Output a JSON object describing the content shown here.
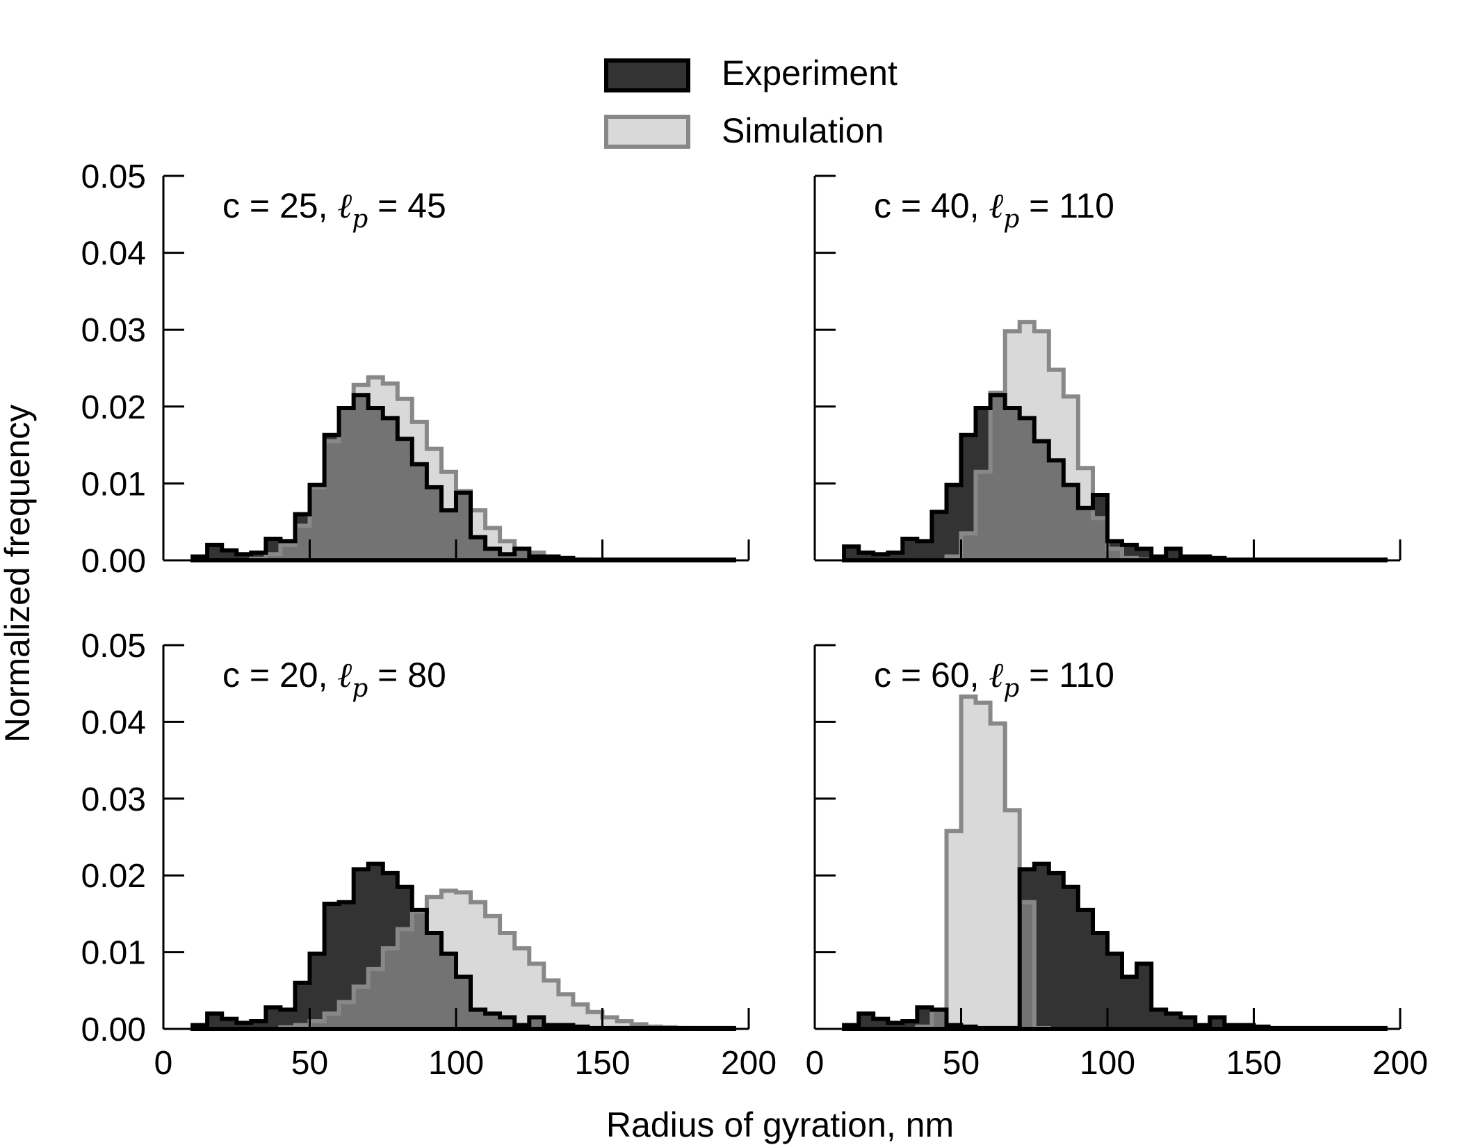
{
  "legend": {
    "placement": "top-center",
    "items": [
      {
        "label": "Experiment",
        "fill": "#333333",
        "stroke": "#000000"
      },
      {
        "label": "Simulation",
        "fill": "#d9d9d9",
        "stroke": "#888888"
      }
    ]
  },
  "xlabel": "Radius of gyration, nm",
  "ylabel": "Normalized frequency",
  "colors": {
    "overlap": "#737373",
    "axis": "#000000"
  },
  "chart_data": [
    {
      "type": "histogram",
      "annotation": {
        "prefix": "c = 25, ",
        "symbol": "ℓ",
        "subscript": "p",
        "suffix": " = 45"
      },
      "xlim": [
        0,
        200
      ],
      "ylim": [
        0,
        0.05
      ],
      "xticks": [
        0,
        50,
        100,
        150,
        200
      ],
      "yticks": [
        "0.00",
        "0.01",
        "0.02",
        "0.03",
        "0.04",
        "0.05"
      ],
      "bin_width": 5,
      "series": [
        {
          "name": "Experiment",
          "bin_start": 10,
          "values": [
            0.0005,
            0.002,
            0.0013,
            0.0008,
            0.001,
            0.0028,
            0.0025,
            0.006,
            0.0098,
            0.0163,
            0.0198,
            0.0215,
            0.0198,
            0.0185,
            0.0158,
            0.0125,
            0.0095,
            0.0065,
            0.0088,
            0.003,
            0.0015,
            0.0008,
            0.0015,
            0.0005,
            0.0005,
            0.0003,
            0.0001,
            0.0001,
            0.0001,
            0.0001,
            0.0001,
            0.0001,
            0.0001,
            0.0001,
            0.0001,
            0.0001,
            0.0001
          ]
        },
        {
          "name": "Simulation",
          "bin_start": 30,
          "values": [
            0.0002,
            0.0008,
            0.002,
            0.0045,
            0.0095,
            0.0155,
            0.0198,
            0.0228,
            0.0238,
            0.023,
            0.021,
            0.018,
            0.0145,
            0.0115,
            0.009,
            0.0065,
            0.0042,
            0.0025,
            0.0015,
            0.001,
            0.0005,
            0.0003,
            0.0001
          ]
        }
      ]
    },
    {
      "type": "histogram",
      "annotation": {
        "prefix": "c = 40, ",
        "symbol": "ℓ",
        "subscript": "p",
        "suffix": " = 110"
      },
      "xlim": [
        0,
        200
      ],
      "ylim": [
        0,
        0.05
      ],
      "xticks": [
        0,
        50,
        100,
        150,
        200
      ],
      "yticks": [
        "0.00",
        "0.01",
        "0.02",
        "0.03",
        "0.04",
        "0.05"
      ],
      "bin_width": 5,
      "series": [
        {
          "name": "Experiment",
          "bin_start": 10,
          "values": [
            0.0018,
            0.001,
            0.0008,
            0.001,
            0.0028,
            0.0025,
            0.0063,
            0.0098,
            0.0163,
            0.0198,
            0.0215,
            0.0198,
            0.0185,
            0.0155,
            0.013,
            0.0098,
            0.0068,
            0.0085,
            0.0025,
            0.002,
            0.0015,
            0.0005,
            0.0015,
            0.0005,
            0.0005,
            0.0003,
            0.0001,
            0.0001,
            0.0001,
            0.0001,
            0.0001,
            0.0001,
            0.0001,
            0.0001,
            0.0001,
            0.0001,
            0.0001
          ]
        },
        {
          "name": "Simulation",
          "bin_start": 45,
          "values": [
            0.0005,
            0.0035,
            0.0115,
            0.0218,
            0.0298,
            0.031,
            0.0298,
            0.0248,
            0.0213,
            0.012,
            0.0055,
            0.0015,
            0.0003,
            0.0001
          ]
        }
      ]
    },
    {
      "type": "histogram",
      "annotation": {
        "prefix": "c = 20, ",
        "symbol": "ℓ",
        "subscript": "p",
        "suffix": " = 80"
      },
      "xlim": [
        0,
        200
      ],
      "ylim": [
        0,
        0.05
      ],
      "xticks": [
        0,
        50,
        100,
        150,
        200
      ],
      "yticks": [
        "0.00",
        "0.01",
        "0.02",
        "0.03",
        "0.04",
        "0.05"
      ],
      "bin_width": 5,
      "series": [
        {
          "name": "Experiment",
          "bin_start": 10,
          "values": [
            0.0005,
            0.002,
            0.0013,
            0.0008,
            0.001,
            0.0028,
            0.0025,
            0.006,
            0.0098,
            0.0163,
            0.0165,
            0.0208,
            0.0215,
            0.0203,
            0.0185,
            0.0155,
            0.0125,
            0.0098,
            0.0068,
            0.0025,
            0.002,
            0.0015,
            0.0005,
            0.0015,
            0.0005,
            0.0005,
            0.0003,
            0.0001,
            0.0001,
            0.0001,
            0.0001,
            0.0001,
            0.0001,
            0.0001,
            0.0001,
            0.0001,
            0.0001
          ]
        },
        {
          "name": "Simulation",
          "bin_start": 40,
          "values": [
            0.0002,
            0.0005,
            0.001,
            0.002,
            0.0035,
            0.0055,
            0.0078,
            0.0105,
            0.013,
            0.0153,
            0.0172,
            0.018,
            0.0178,
            0.0165,
            0.0147,
            0.0125,
            0.0105,
            0.0085,
            0.0063,
            0.0045,
            0.0032,
            0.0022,
            0.0015,
            0.001,
            0.0006,
            0.0003,
            0.0002,
            0.0001
          ]
        }
      ]
    },
    {
      "type": "histogram",
      "annotation": {
        "prefix": "c = 60, ",
        "symbol": "ℓ",
        "subscript": "p",
        "suffix": " = 110"
      },
      "xlim": [
        0,
        200
      ],
      "ylim": [
        0,
        0.05
      ],
      "xticks": [
        0,
        50,
        100,
        150,
        200
      ],
      "yticks": [
        "0.00",
        "0.01",
        "0.02",
        "0.03",
        "0.04",
        "0.05"
      ],
      "bin_width": 5,
      "series": [
        {
          "name": "Experiment",
          "bin_start": 10,
          "values": [
            0.0005,
            0.002,
            0.0013,
            0.0008,
            0.001,
            0.0028,
            0.0025,
            0.0005,
            0.0003,
            0.0001,
            0.0001,
            0.0001,
            0.0208,
            0.0215,
            0.0203,
            0.0185,
            0.0155,
            0.0125,
            0.0098,
            0.0068,
            0.0085,
            0.0025,
            0.002,
            0.0015,
            0.0005,
            0.0015,
            0.0005,
            0.0005,
            0.0003,
            0.0001,
            0.0001,
            0.0001,
            0.0001,
            0.0001,
            0.0001,
            0.0001,
            0.0001
          ]
        },
        {
          "name": "Simulation",
          "bin_start": 35,
          "values": [
            0.0003,
            0.0025,
            0.0258,
            0.0433,
            0.0425,
            0.0398,
            0.0285,
            0.0165,
            0.0001
          ]
        }
      ]
    }
  ]
}
